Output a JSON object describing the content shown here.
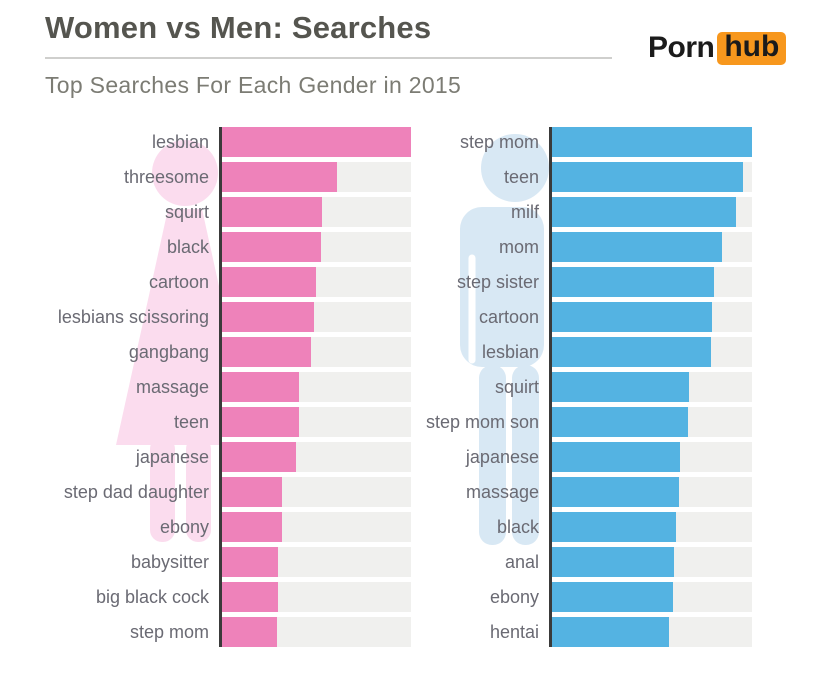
{
  "header": {
    "title": "Women vs Men: Searches",
    "subtitle": "Top Searches For Each Gender in 2015",
    "logo": {
      "word1": "Porn",
      "word2": "hub"
    }
  },
  "colors": {
    "women_bar": "#ee82ba",
    "men_bar": "#54b3e2",
    "women_silhouette": "#fbdcee",
    "men_silhouette": "#d8e8f4",
    "track": "#f0f0ee",
    "axis": "#3a3a3a",
    "logo_orange": "#f7971d",
    "title_text": "#55554f",
    "subtitle_text": "#7c7c74",
    "label_text": "#6a6a73"
  },
  "chart_data": [
    {
      "type": "bar",
      "group": "Women",
      "title": "Top Searches For Each Gender in 2015",
      "orientation": "horizontal",
      "value_unit": "relative_bar_length_percent_of_longest",
      "numeric_axis_visible": false,
      "grid": false,
      "legend": false,
      "bar_color": "#ee82ba",
      "categories": [
        "lesbian",
        "threesome",
        "squirt",
        "black",
        "cartoon",
        "lesbians scissoring",
        "gangbang",
        "massage",
        "teen",
        "japanese",
        "step dad daughter",
        "ebony",
        "babysitter",
        "big black cock",
        "step mom"
      ],
      "values": [
        100,
        61,
        53,
        52.5,
        49.5,
        48.5,
        47,
        41,
        40.5,
        39,
        32,
        31.5,
        29.5,
        29.5,
        29
      ]
    },
    {
      "type": "bar",
      "group": "Men",
      "title": "Top Searches For Each Gender in 2015",
      "orientation": "horizontal",
      "value_unit": "relative_bar_length_percent_of_longest",
      "numeric_axis_visible": false,
      "grid": false,
      "legend": false,
      "bar_color": "#54b3e2",
      "categories": [
        "step mom",
        "teen",
        "milf",
        "mom",
        "step sister",
        "cartoon",
        "lesbian",
        "squirt",
        "step mom son",
        "japanese",
        "massage",
        "black",
        "anal",
        "ebony",
        "hentai"
      ],
      "values": [
        100,
        95.5,
        92,
        85,
        81,
        80,
        79.5,
        68.5,
        68,
        64,
        63.5,
        62,
        61,
        60.5,
        58.5
      ]
    }
  ]
}
